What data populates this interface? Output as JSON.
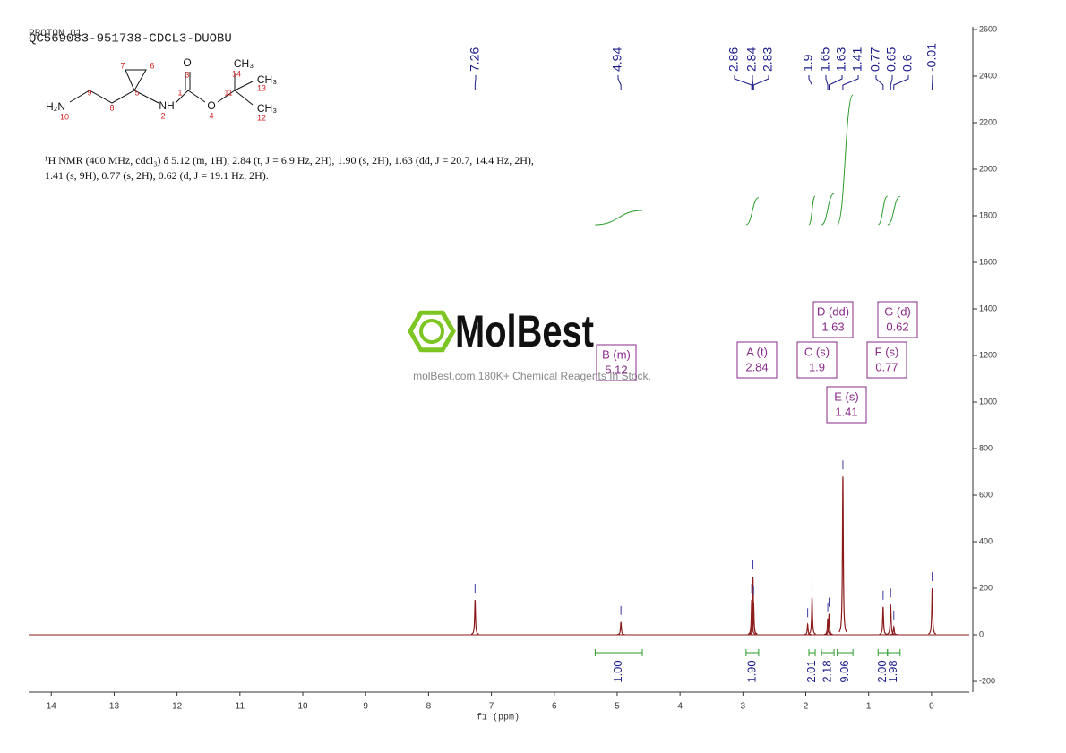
{
  "chart_data": {
    "type": "nmr",
    "title": "QC569083-951738-CDCL3-DUOBU",
    "subtitle": "PROTON_01",
    "description": "¹H NMR (400 MHz, cdcl₃) δ 5.12 (m, 1H), 2.84 (t, J = 6.9 Hz, 2H), 1.90 (s, 2H), 1.63 (dd, J = 20.7, 14.4 Hz, 2H), 1.41 (s, 9H), 0.77 (s, 2H), 0.62 (d, J = 19.1 Hz, 2H).",
    "structure": {
      "atoms": [
        "H₂N",
        "NH",
        "O",
        "O",
        "CH₃",
        "CH₃",
        "CH₃"
      ],
      "numbers": [
        "1",
        "2",
        "3",
        "4",
        "5",
        "6",
        "7",
        "8",
        "9",
        "10",
        "11",
        "12",
        "13",
        "14"
      ]
    },
    "watermark": {
      "brand": "MolBest",
      "text": "molBest.com,180K+ Chemical Reagents In Stock."
    },
    "xlabel": "f1 (ppm)",
    "xlim": [
      14.36,
      -0.6
    ],
    "xticks": [
      14,
      13,
      12,
      11,
      10,
      9,
      8,
      7,
      6,
      5,
      4,
      3,
      2,
      1,
      0
    ],
    "ylim": [
      -246,
      2600
    ],
    "yticks": [
      -200,
      0,
      200,
      400,
      600,
      800,
      1000,
      1200,
      1400,
      1600,
      1800,
      2000,
      2200,
      2400,
      2600
    ],
    "color": "#8b1a1a",
    "peaks": {
      "shift": [
        7.26,
        4.94,
        2.86,
        2.84,
        2.83,
        1.97,
        1.9,
        1.65,
        1.63,
        1.41,
        0.77,
        0.65,
        0.6,
        -0.01
      ],
      "height": [
        150,
        55,
        150,
        250,
        140,
        45,
        160,
        70,
        90,
        680,
        120,
        130,
        35,
        200
      ]
    },
    "peak_picks": [
      7.26,
      4.94,
      2.86,
      2.84,
      2.83,
      1.9,
      1.65,
      1.63,
      1.41,
      0.77,
      0.65,
      0.6,
      -0.01
    ],
    "integrals": {
      "ranges": [
        [
          5.35,
          4.6
        ],
        [
          2.95,
          2.75
        ],
        [
          1.95,
          1.85
        ],
        [
          1.75,
          1.55
        ],
        [
          1.5,
          1.25
        ],
        [
          0.85,
          0.7
        ],
        [
          0.7,
          0.5
        ]
      ],
      "values": [
        1.0,
        1.9,
        2.01,
        2.18,
        9.06,
        2.0,
        1.98
      ],
      "value_labels": [
        "1.00",
        "1.90",
        "2.01",
        "2.18",
        "9.06",
        "2.00",
        "1.98"
      ]
    },
    "multiplets": {
      "labels": [
        "B (m)",
        "A (t)",
        "C (s)",
        "D (dd)",
        "E (s)",
        "F (s)",
        "G (d)"
      ],
      "shifts": [
        5.12,
        2.84,
        1.9,
        1.63,
        1.41,
        0.77,
        0.62
      ]
    }
  }
}
